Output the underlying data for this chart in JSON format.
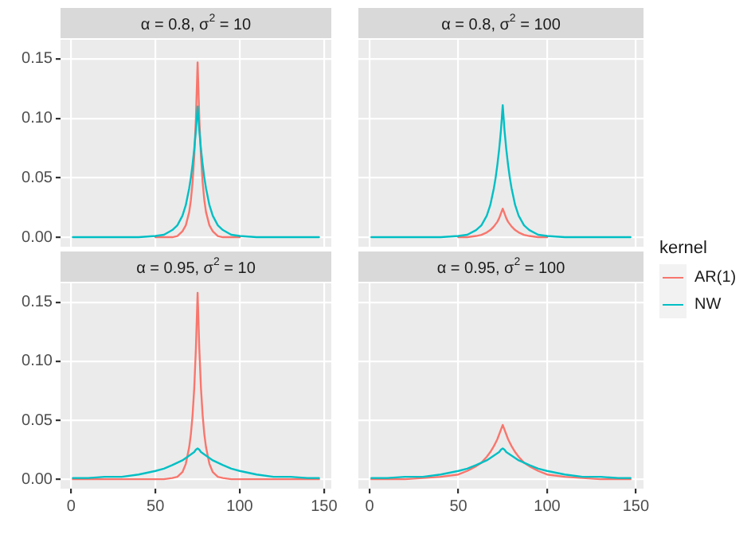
{
  "chart_data": [
    {
      "type": "line",
      "title": "α = 0.8, σ$^{2}$ = 10",
      "x": [
        1,
        10,
        20,
        30,
        40,
        50,
        55,
        60,
        63,
        66,
        68,
        70,
        71,
        72,
        73,
        74,
        75,
        76,
        77,
        78,
        79,
        80,
        82,
        84,
        87,
        90,
        95,
        100,
        110,
        120,
        130,
        140,
        147
      ],
      "xlim": [
        -6.3,
        154.3
      ],
      "ylim": [
        -0.008,
        0.166
      ],
      "xticks": [
        0,
        50,
        100,
        150
      ],
      "yticks": [
        {
          "value": 0,
          "label": "0.00"
        },
        {
          "value": 0.05,
          "label": "0.05"
        },
        {
          "value": 0.1,
          "label": "0.10"
        },
        {
          "value": 0.15,
          "label": "0.15"
        }
      ],
      "tick_labels": "y",
      "grid": true,
      "marker": "none",
      "legend": "right",
      "legend_title": "kernel",
      "series": [
        {
          "name": "AR(1)",
          "color": "#f8766d",
          "values": [
            null,
            null,
            null,
            null,
            null,
            0,
            0,
            0,
            0.001,
            0.005,
            0.01,
            0.021,
            0.031,
            0.046,
            0.068,
            0.1,
            0.147,
            0.1,
            0.068,
            0.046,
            0.031,
            0.021,
            0.01,
            0.005,
            0.001,
            0,
            0,
            0,
            null,
            null,
            null,
            null,
            null
          ]
        },
        {
          "name": "NW",
          "color": "#00bfc4",
          "values": [
            0,
            0,
            0,
            0,
            0,
            0.001,
            0.002,
            0.006,
            0.01,
            0.018,
            0.027,
            0.041,
            0.05,
            0.061,
            0.074,
            0.09,
            0.11,
            0.09,
            0.074,
            0.061,
            0.05,
            0.041,
            0.027,
            0.018,
            0.01,
            0.006,
            0.002,
            0.001,
            0,
            0,
            0,
            0,
            0
          ]
        }
      ]
    },
    {
      "type": "line",
      "title": "α = 0.8, σ$^{2}$ = 100",
      "x": [
        1,
        10,
        20,
        30,
        40,
        50,
        55,
        60,
        63,
        66,
        68,
        70,
        71,
        72,
        73,
        74,
        75,
        76,
        77,
        78,
        79,
        80,
        82,
        84,
        87,
        90,
        95,
        100,
        110,
        120,
        130,
        140,
        147
      ],
      "xlim": [
        -6.3,
        154.3
      ],
      "ylim": [
        -0.008,
        0.166
      ],
      "xticks": [
        0,
        50,
        100,
        150
      ],
      "yticks": [
        0,
        0.05,
        0.1,
        0.15
      ],
      "tick_labels": false,
      "grid": true,
      "marker": "none",
      "series": [
        {
          "color": "#f8766d",
          "values": [
            null,
            null,
            null,
            null,
            null,
            0,
            0,
            0.001,
            0.002,
            0.004,
            0.006,
            0.009,
            0.011,
            0.013,
            0.016,
            0.02,
            0.024,
            0.02,
            0.016,
            0.013,
            0.011,
            0.009,
            0.006,
            0.004,
            0.002,
            0.001,
            0,
            0,
            null,
            null,
            null,
            null,
            null
          ]
        },
        {
          "color": "#00bfc4",
          "values": [
            0,
            0,
            0,
            0,
            0,
            0.001,
            0.002,
            0.006,
            0.01,
            0.018,
            0.027,
            0.041,
            0.05,
            0.061,
            0.074,
            0.09,
            0.111,
            0.09,
            0.074,
            0.061,
            0.05,
            0.041,
            0.027,
            0.018,
            0.01,
            0.006,
            0.002,
            0.001,
            0,
            0,
            0,
            0,
            0
          ]
        }
      ]
    },
    {
      "type": "line",
      "title": "α = 0.95, σ$^{2}$ = 10",
      "x": [
        1,
        10,
        20,
        30,
        40,
        50,
        55,
        60,
        63,
        66,
        68,
        70,
        71,
        72,
        73,
        74,
        75,
        76,
        77,
        78,
        79,
        80,
        82,
        84,
        87,
        90,
        95,
        100,
        110,
        120,
        130,
        140,
        147
      ],
      "xlim": [
        -6.3,
        154.3
      ],
      "ylim": [
        -0.008,
        0.166
      ],
      "xticks": [
        0,
        50,
        100,
        150
      ],
      "yticks": [
        {
          "value": 0,
          "label": "0.00"
        },
        {
          "value": 0.05,
          "label": "0.05"
        },
        {
          "value": 0.1,
          "label": "0.10"
        },
        {
          "value": 0.15,
          "label": "0.15"
        }
      ],
      "grid": true,
      "marker": "none",
      "series": [
        {
          "color": "#f8766d",
          "values": [
            0,
            0,
            0,
            0,
            0,
            0,
            0,
            0.001,
            0.002,
            0.006,
            0.013,
            0.027,
            0.038,
            0.054,
            0.077,
            0.111,
            0.158,
            0.111,
            0.077,
            0.054,
            0.038,
            0.027,
            0.013,
            0.006,
            0.002,
            0.001,
            0,
            0,
            0,
            0,
            0,
            0,
            0
          ]
        },
        {
          "color": "#00bfc4",
          "values": [
            0.001,
            0.001,
            0.002,
            0.002,
            0.004,
            0.007,
            0.009,
            0.012,
            0.014,
            0.016,
            0.018,
            0.02,
            0.021,
            0.022,
            0.023,
            0.025,
            0.026,
            0.025,
            0.023,
            0.022,
            0.021,
            0.02,
            0.018,
            0.016,
            0.014,
            0.012,
            0.009,
            0.007,
            0.004,
            0.002,
            0.002,
            0.001,
            0.001
          ]
        }
      ]
    },
    {
      "type": "line",
      "title": "α = 0.95, σ$^{2}$ = 100",
      "x": [
        1,
        10,
        20,
        30,
        40,
        50,
        55,
        60,
        63,
        66,
        68,
        70,
        71,
        72,
        73,
        74,
        75,
        76,
        77,
        78,
        79,
        80,
        82,
        84,
        87,
        90,
        95,
        100,
        110,
        120,
        130,
        140,
        147
      ],
      "xlim": [
        -6.3,
        154.3
      ],
      "ylim": [
        -0.008,
        0.166
      ],
      "xticks": [
        0,
        50,
        100,
        150
      ],
      "yticks": [
        0,
        0.05,
        0.1,
        0.15
      ],
      "tick_labels": "x",
      "grid": true,
      "marker": "none",
      "series": [
        {
          "color": "#f8766d",
          "values": [
            0,
            0,
            0,
            0.001,
            0.002,
            0.004,
            0.007,
            0.011,
            0.014,
            0.019,
            0.023,
            0.028,
            0.031,
            0.034,
            0.038,
            0.042,
            0.046,
            0.042,
            0.038,
            0.034,
            0.031,
            0.028,
            0.023,
            0.019,
            0.014,
            0.011,
            0.007,
            0.004,
            0.002,
            0.001,
            0,
            0,
            0
          ]
        },
        {
          "color": "#00bfc4",
          "values": [
            0.001,
            0.001,
            0.002,
            0.002,
            0.004,
            0.007,
            0.009,
            0.012,
            0.014,
            0.016,
            0.018,
            0.02,
            0.021,
            0.022,
            0.023,
            0.025,
            0.026,
            0.025,
            0.023,
            0.022,
            0.021,
            0.02,
            0.018,
            0.016,
            0.014,
            0.012,
            0.009,
            0.007,
            0.004,
            0.002,
            0.002,
            0.001,
            0.001
          ]
        }
      ]
    }
  ]
}
